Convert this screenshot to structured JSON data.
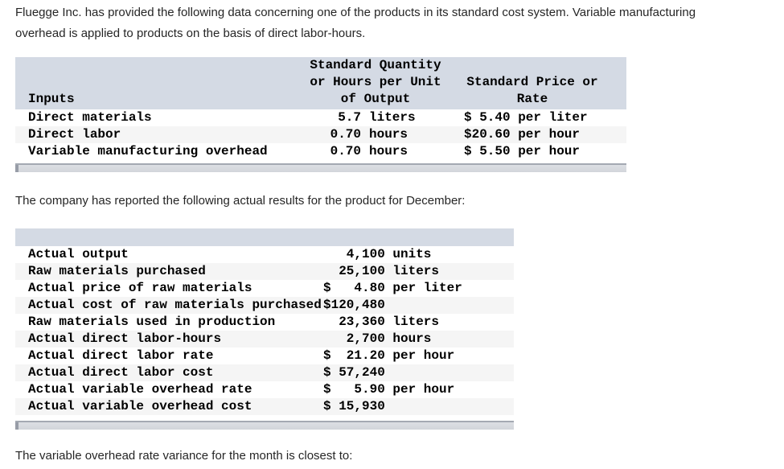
{
  "intro": {
    "lines": [
      "Fluegge Inc. has provided the following data concerning one of the products in its standard cost system. Variable manufacturing",
      "overhead is applied to products on the basis of direct labor-hours."
    ]
  },
  "standards_table": {
    "headers": {
      "inputs": "Inputs",
      "qty_lines": [
        "Standard Quantity",
        "or Hours per Unit",
        "of Output"
      ],
      "price_lines": [
        "Standard Price or",
        "Rate"
      ]
    },
    "rows": [
      {
        "label": "Direct materials",
        "qty": "5.7",
        "qty_unit": "liters",
        "currency": "$",
        "price": "5.40",
        "price_unit": "per liter"
      },
      {
        "label": "Direct labor",
        "qty": "0.70",
        "qty_unit": "hours",
        "currency": "$",
        "price": "20.60",
        "price_unit": "per hour"
      },
      {
        "label": "Variable manufacturing overhead",
        "qty": "0.70",
        "qty_unit": "hours",
        "currency": "$",
        "price": "5.50",
        "price_unit": "per hour"
      }
    ]
  },
  "actuals_intro": "The company has reported the following actual results for the product for December:",
  "actuals_table": {
    "rows": [
      {
        "label": "Actual output",
        "currency": "",
        "value": "4,100",
        "unit": "units"
      },
      {
        "label": "Raw materials purchased",
        "currency": "",
        "value": "25,100",
        "unit": "liters"
      },
      {
        "label": "Actual price of raw materials",
        "currency": "$",
        "value": "4.80",
        "unit": "per liter"
      },
      {
        "label": "Actual cost of raw materials purchased",
        "currency": "$",
        "value": "120,480",
        "unit": ""
      },
      {
        "label": "Raw materials used in production",
        "currency": "",
        "value": "23,360",
        "unit": "liters"
      },
      {
        "label": "Actual direct labor-hours",
        "currency": "",
        "value": "2,700",
        "unit": "hours"
      },
      {
        "label": "Actual direct labor rate",
        "currency": "$",
        "value": "21.20",
        "unit": "per hour"
      },
      {
        "label": "Actual direct labor cost",
        "currency": "$",
        "value": "57,240",
        "unit": ""
      },
      {
        "label": "Actual variable overhead rate",
        "currency": "$",
        "value": "5.90",
        "unit": "per hour"
      },
      {
        "label": "Actual variable overhead cost",
        "currency": "$",
        "value": "15,930",
        "unit": ""
      }
    ]
  },
  "question": "The variable overhead rate variance for the month is closest to:",
  "colors": {
    "table_header_bg": "#d4dae4",
    "row_alt_bg": "#f5f5f5",
    "scrollbar_track": "#d6d9de",
    "scrollbar_border": "#a4a9b2"
  }
}
